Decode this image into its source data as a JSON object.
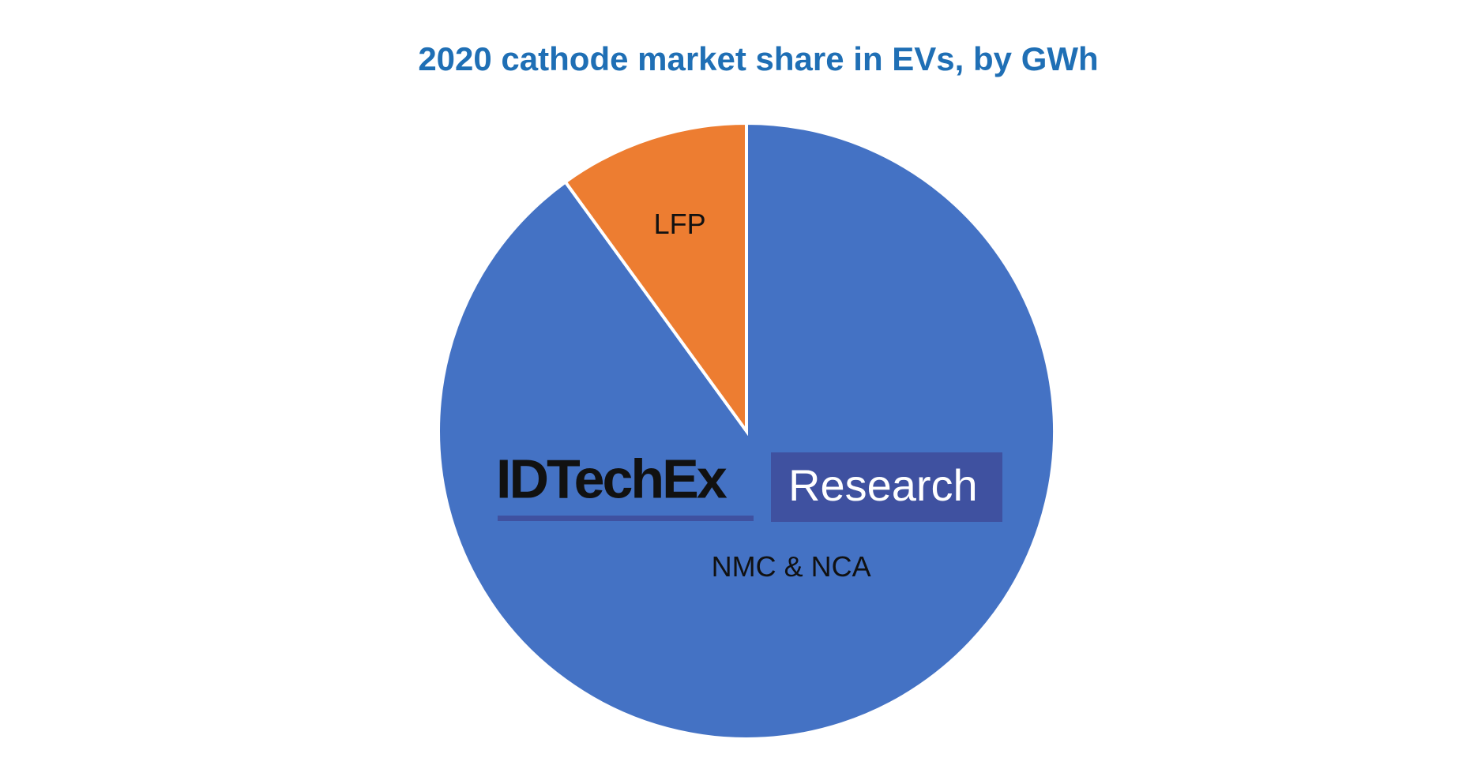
{
  "chart_data": {
    "type": "pie",
    "title": "2020 cathode market share in EVs, by GWh",
    "categories": [
      "NMC & NCA",
      "LFP"
    ],
    "values": [
      90,
      10
    ],
    "colors": [
      "#4472c4",
      "#ed7d31"
    ]
  },
  "watermark": {
    "brand": "IDTechEx",
    "tag": "Research"
  }
}
